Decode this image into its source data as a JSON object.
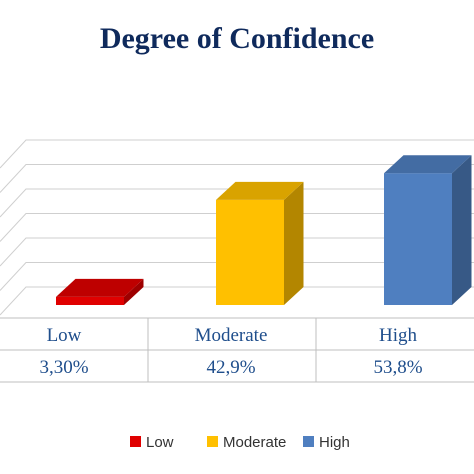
{
  "chart_data": {
    "type": "bar",
    "title": "Degree of Confidence",
    "categories": [
      "Low",
      "Moderate",
      "High"
    ],
    "values": [
      3.3,
      42.9,
      53.8
    ],
    "value_labels": [
      "3,30%",
      "42,9%",
      "53,8%"
    ],
    "ylim": [
      0,
      60
    ],
    "grid": true,
    "three_d": true,
    "legend": {
      "position": "bottom",
      "entries": [
        "Low",
        "Moderate",
        "High"
      ]
    },
    "colors": {
      "Low": "#e00000",
      "Moderate": "#ffc000",
      "High": "#4f7fc0"
    },
    "data_table": true
  }
}
